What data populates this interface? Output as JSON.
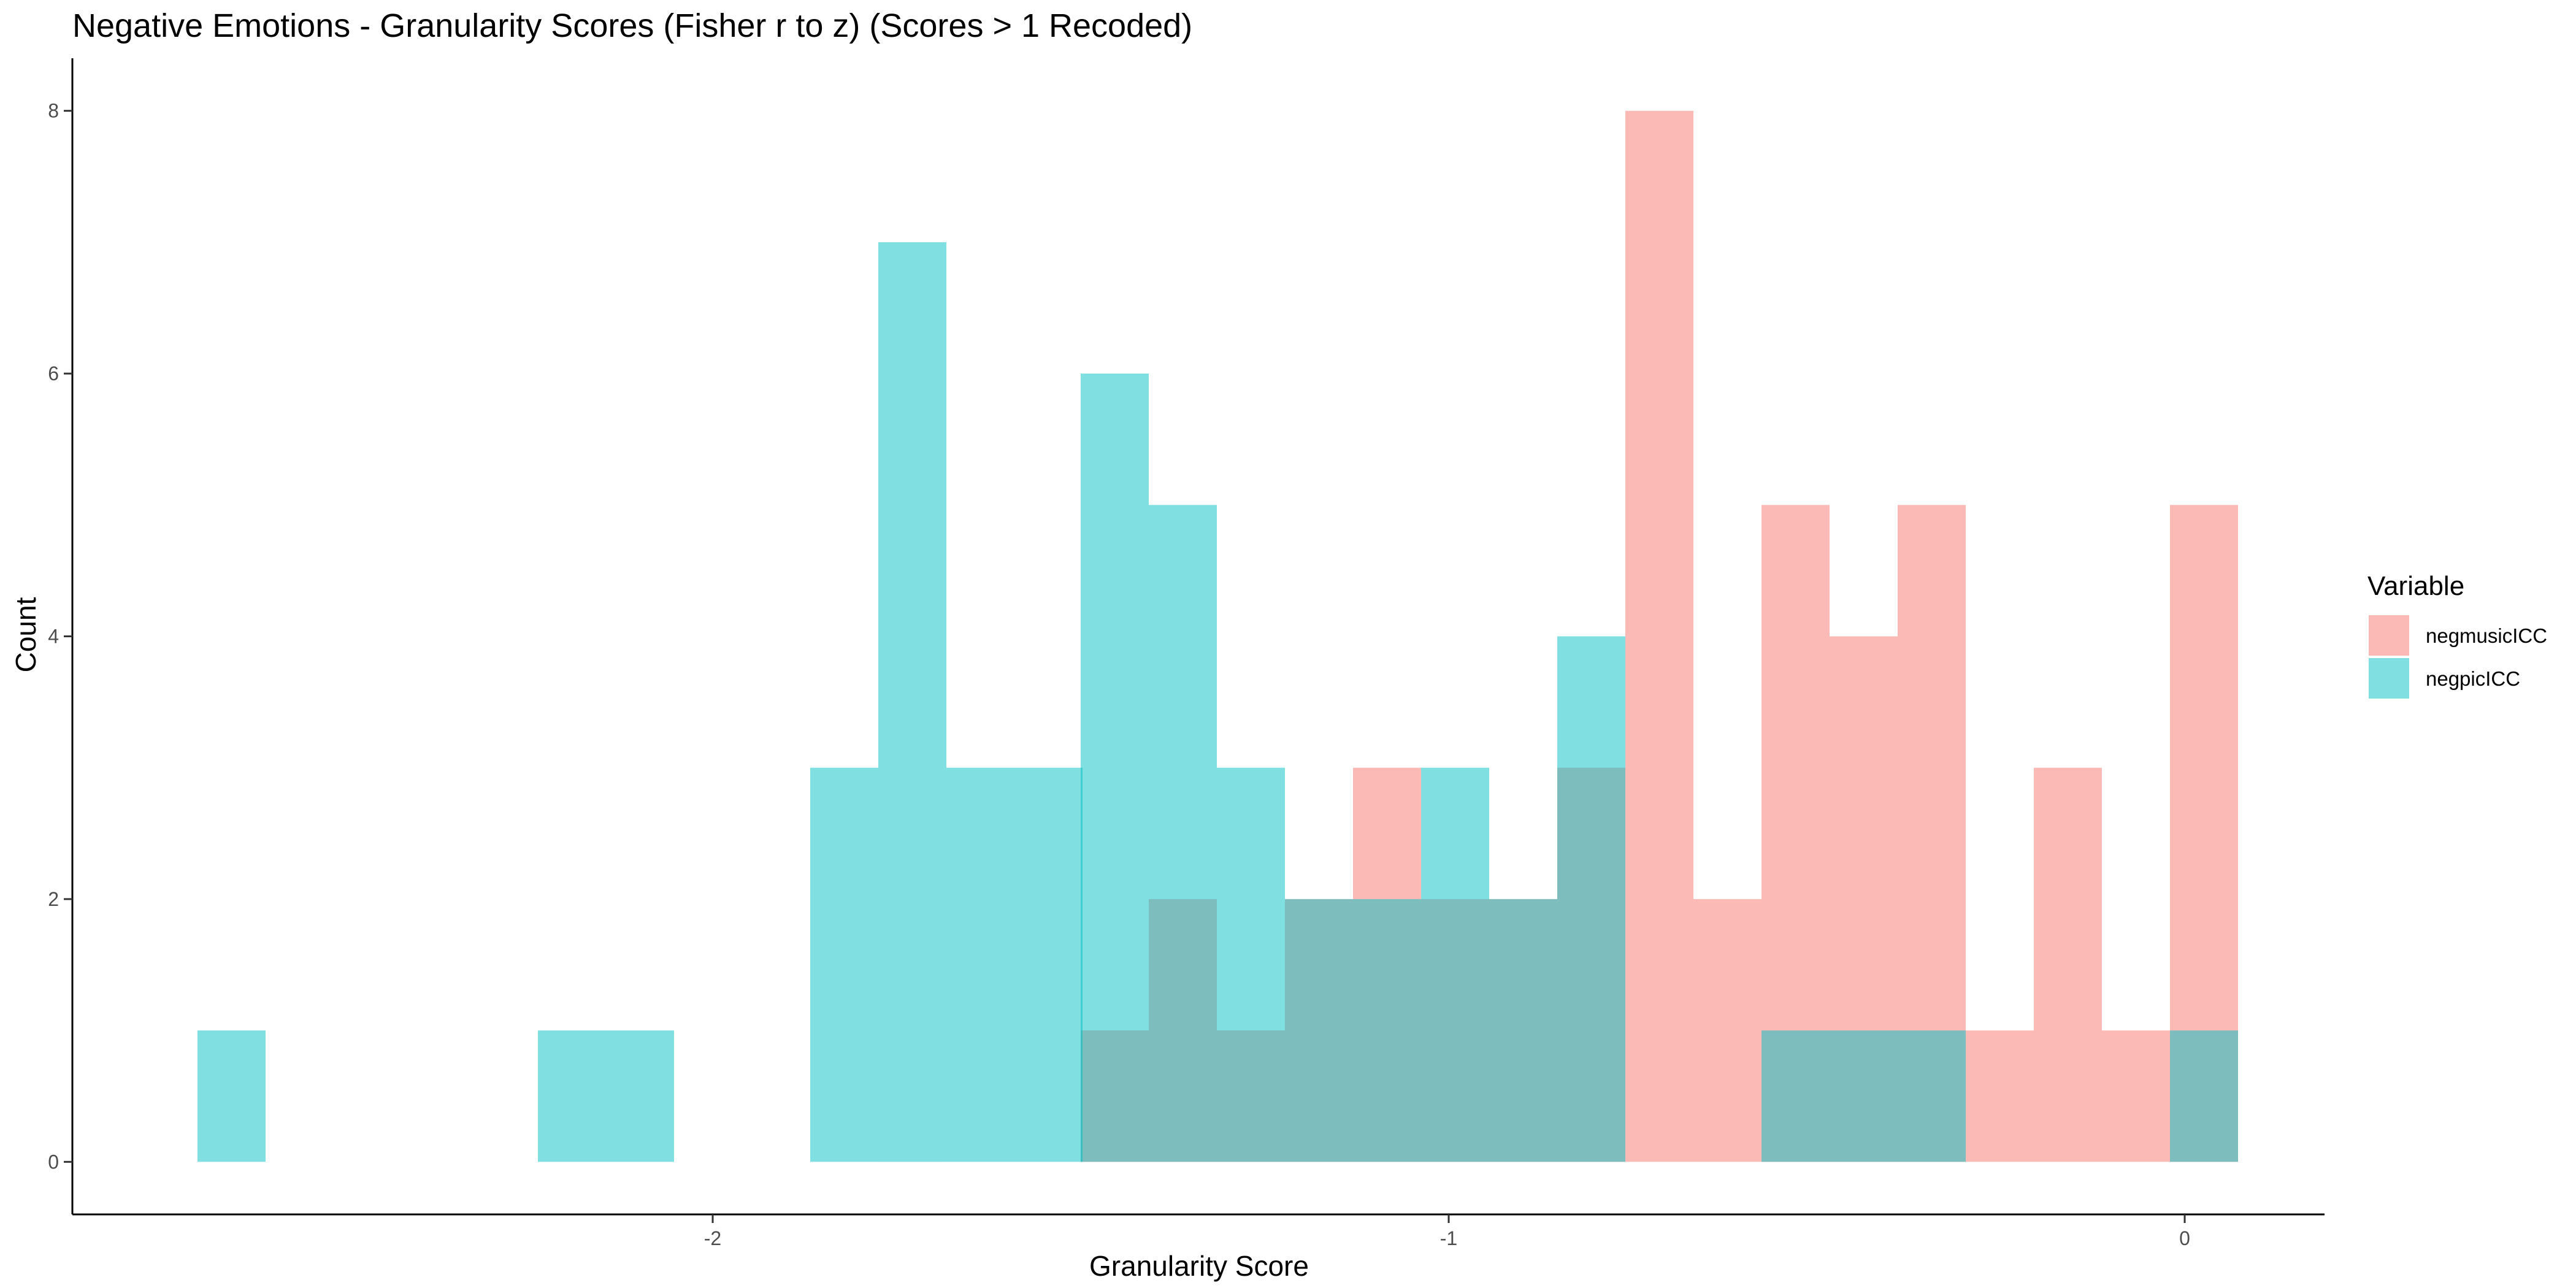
{
  "chart_data": {
    "type": "bar",
    "subtype": "overlapping-histogram",
    "title": "Negative Emotions - Granularity Scores (Fisher r to z) (Scores > 1 Recoded)",
    "xlabel": "Granularity Score",
    "ylabel": "Count",
    "xlim": [
      -2.87,
      0.19
    ],
    "ylim": [
      -0.4,
      8.4
    ],
    "x_ticks": [
      -2,
      -1,
      0
    ],
    "y_ticks": [
      0,
      2,
      4,
      6,
      8
    ],
    "bin_width": 0.0925,
    "grid": false,
    "legend_position": "right",
    "legend": {
      "title": "Variable",
      "entries": [
        {
          "label": "negmusicICC",
          "color": "#F8766D"
        },
        {
          "label": "negpicICC",
          "color": "#00BFC4"
        }
      ]
    },
    "series": [
      {
        "name": "negmusicICC",
        "color": "#F8766D",
        "opacity": 0.5,
        "bins": [
          [
            -1.5,
            1
          ],
          [
            -1.4075,
            2
          ],
          [
            -1.315,
            1
          ],
          [
            -1.2225,
            2
          ],
          [
            -1.13,
            3
          ],
          [
            -1.0375,
            2
          ],
          [
            -0.945,
            2
          ],
          [
            -0.8525,
            3
          ],
          [
            -0.76,
            8
          ],
          [
            -0.6675,
            2
          ],
          [
            -0.575,
            5
          ],
          [
            -0.4825,
            4
          ],
          [
            -0.39,
            5
          ],
          [
            -0.2975,
            1
          ],
          [
            -0.205,
            3
          ],
          [
            -0.1125,
            1
          ],
          [
            -0.02,
            5
          ]
        ]
      },
      {
        "name": "negpicICC",
        "color": "#00BFC4",
        "opacity": 0.5,
        "bins": [
          [
            -2.7,
            1
          ],
          [
            -2.2375,
            1
          ],
          [
            -2.145,
            1
          ],
          [
            -1.8675,
            3
          ],
          [
            -1.775,
            7
          ],
          [
            -1.6825,
            3
          ],
          [
            -1.59,
            3
          ],
          [
            -1.5,
            6
          ],
          [
            -1.4075,
            5
          ],
          [
            -1.315,
            3
          ],
          [
            -1.2225,
            2
          ],
          [
            -1.13,
            2
          ],
          [
            -1.0375,
            3
          ],
          [
            -0.945,
            2
          ],
          [
            -0.8525,
            4
          ],
          [
            -0.575,
            1
          ],
          [
            -0.4825,
            1
          ],
          [
            -0.39,
            1
          ],
          [
            -0.02,
            1
          ]
        ]
      }
    ]
  }
}
